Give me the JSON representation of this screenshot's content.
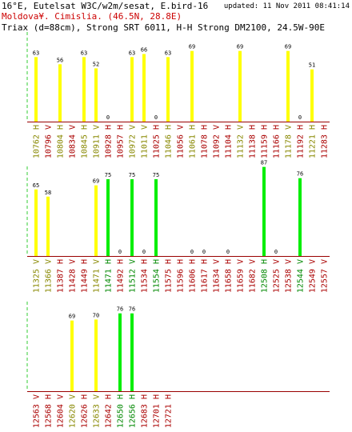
{
  "header": {
    "title": "16°E, Eutelsat W3C/w2m/sesat, E.bird-16",
    "updated": "updated: 11 Nov 2011 08:41:14",
    "location": "Moldova¥. Cimislia.  (46.5N, 28.8E)",
    "receiver": "Triax (d=88cm), Strong SRT 6011, H-H Strong DM2100, 24.5W-90E"
  },
  "colors": {
    "yellow": "#ffff00",
    "green": "#00ee00",
    "baseline": "#990000",
    "axis_dash": "#33cc33",
    "label_yellow": "#888800",
    "label_green": "#008800",
    "label_red": "#aa0000"
  },
  "chart_data": [
    {
      "type": "bar",
      "ylim": [
        0,
        100
      ],
      "bars": [
        {
          "freq": "10762",
          "pol": "H",
          "value": 63,
          "color": "yellow"
        },
        {
          "freq": "10796",
          "pol": "V",
          "value": null,
          "color": "red"
        },
        {
          "freq": "10804",
          "pol": "H",
          "value": 56,
          "color": "yellow"
        },
        {
          "freq": "10834",
          "pol": "V",
          "value": null,
          "color": "red"
        },
        {
          "freq": "10845",
          "pol": "H",
          "value": 63,
          "color": "yellow"
        },
        {
          "freq": "10911",
          "pol": "V",
          "value": 52,
          "color": "yellow"
        },
        {
          "freq": "10928",
          "pol": "H",
          "value": 0,
          "color": "red"
        },
        {
          "freq": "10957",
          "pol": "H",
          "value": null,
          "color": "red"
        },
        {
          "freq": "10972",
          "pol": "V",
          "value": 63,
          "color": "yellow"
        },
        {
          "freq": "11011",
          "pol": "V",
          "value": 66,
          "color": "yellow"
        },
        {
          "freq": "11025",
          "pol": "H",
          "value": 0,
          "color": "red"
        },
        {
          "freq": "11046",
          "pol": "H",
          "value": 63,
          "color": "yellow"
        },
        {
          "freq": "11056",
          "pol": "V",
          "value": null,
          "color": "red"
        },
        {
          "freq": "11061",
          "pol": "H",
          "value": 69,
          "color": "yellow"
        },
        {
          "freq": "11078",
          "pol": "H",
          "value": null,
          "color": "red"
        },
        {
          "freq": "11092",
          "pol": "V",
          "value": null,
          "color": "red"
        },
        {
          "freq": "11104",
          "pol": "H",
          "value": null,
          "color": "red"
        },
        {
          "freq": "11132",
          "pol": "V",
          "value": 69,
          "color": "yellow"
        },
        {
          "freq": "11138",
          "pol": "H",
          "value": null,
          "color": "red"
        },
        {
          "freq": "11159",
          "pol": "H",
          "value": null,
          "color": "red"
        },
        {
          "freq": "11166",
          "pol": "H",
          "value": null,
          "color": "red"
        },
        {
          "freq": "11178",
          "pol": "V",
          "value": 69,
          "color": "yellow"
        },
        {
          "freq": "11192",
          "pol": "H",
          "value": 0,
          "color": "red"
        },
        {
          "freq": "11221",
          "pol": "H",
          "value": 51,
          "color": "yellow"
        },
        {
          "freq": "11283",
          "pol": "H",
          "value": null,
          "color": "red"
        }
      ]
    },
    {
      "type": "bar",
      "ylim": [
        0,
        100
      ],
      "bars": [
        {
          "freq": "11325",
          "pol": "V",
          "value": 65,
          "color": "yellow"
        },
        {
          "freq": "11366",
          "pol": "V",
          "value": 58,
          "color": "yellow"
        },
        {
          "freq": "11387",
          "pol": "H",
          "value": null,
          "color": "red"
        },
        {
          "freq": "11428",
          "pol": "V",
          "value": null,
          "color": "red"
        },
        {
          "freq": "11449",
          "pol": "H",
          "value": null,
          "color": "red"
        },
        {
          "freq": "11471",
          "pol": "V",
          "value": 69,
          "color": "yellow"
        },
        {
          "freq": "11471",
          "pol": "H",
          "value": 75,
          "color": "green"
        },
        {
          "freq": "11492",
          "pol": "H",
          "value": 0,
          "color": "red"
        },
        {
          "freq": "11512",
          "pol": "V",
          "value": 75,
          "color": "green"
        },
        {
          "freq": "11534",
          "pol": "H",
          "value": 0,
          "color": "red"
        },
        {
          "freq": "11554",
          "pol": "H",
          "value": 75,
          "color": "green"
        },
        {
          "freq": "11575",
          "pol": "H",
          "value": null,
          "color": "red"
        },
        {
          "freq": "11596",
          "pol": "H",
          "value": null,
          "color": "red"
        },
        {
          "freq": "11606",
          "pol": "H",
          "value": 0,
          "color": "red"
        },
        {
          "freq": "11617",
          "pol": "H",
          "value": 0,
          "color": "red"
        },
        {
          "freq": "11634",
          "pol": "V",
          "value": null,
          "color": "red"
        },
        {
          "freq": "11658",
          "pol": "H",
          "value": 0,
          "color": "red"
        },
        {
          "freq": "11659",
          "pol": "V",
          "value": null,
          "color": "red"
        },
        {
          "freq": "11682",
          "pol": "V",
          "value": null,
          "color": "red"
        },
        {
          "freq": "12508",
          "pol": "H",
          "value": 87,
          "color": "green"
        },
        {
          "freq": "12525",
          "pol": "V",
          "value": 0,
          "color": "red"
        },
        {
          "freq": "12538",
          "pol": "V",
          "value": null,
          "color": "red"
        },
        {
          "freq": "12544",
          "pol": "V",
          "value": 76,
          "color": "green"
        },
        {
          "freq": "12549",
          "pol": "V",
          "value": null,
          "color": "red"
        },
        {
          "freq": "12557",
          "pol": "V",
          "value": null,
          "color": "red"
        }
      ]
    },
    {
      "type": "bar",
      "ylim": [
        0,
        100
      ],
      "bars": [
        {
          "freq": "12563",
          "pol": "V",
          "value": null,
          "color": "red"
        },
        {
          "freq": "12568",
          "pol": "H",
          "value": null,
          "color": "red"
        },
        {
          "freq": "12604",
          "pol": "V",
          "value": null,
          "color": "red"
        },
        {
          "freq": "12620",
          "pol": "V",
          "value": 69,
          "color": "yellow"
        },
        {
          "freq": "12626",
          "pol": "H",
          "value": null,
          "color": "red"
        },
        {
          "freq": "12633",
          "pol": "V",
          "value": 70,
          "color": "yellow"
        },
        {
          "freq": "12642",
          "pol": "H",
          "value": null,
          "color": "red"
        },
        {
          "freq": "12650",
          "pol": "H",
          "value": 76,
          "color": "green"
        },
        {
          "freq": "12656",
          "pol": "H",
          "value": 76,
          "color": "green"
        },
        {
          "freq": "12683",
          "pol": "H",
          "value": null,
          "color": "red"
        },
        {
          "freq": "12701",
          "pol": "H",
          "value": null,
          "color": "red"
        },
        {
          "freq": "12721",
          "pol": "H",
          "value": null,
          "color": "red"
        }
      ]
    }
  ]
}
